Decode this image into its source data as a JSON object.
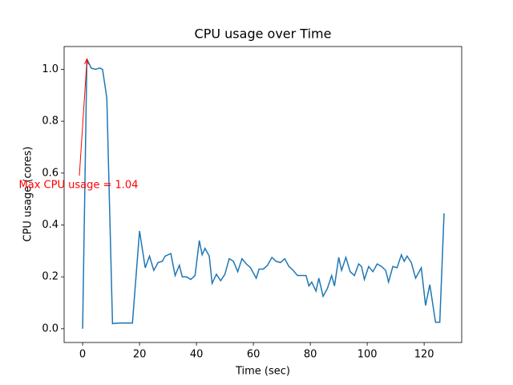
{
  "chart_data": {
    "type": "line",
    "title": "CPU usage over Time",
    "x_label": "Time (sec)",
    "y_label": "CPU usage (cores)",
    "annotation": "Max CPU usage = 1.04",
    "annotation_color": "#ff0000",
    "x": [
      0,
      1.5,
      3,
      4.5,
      6,
      7,
      8.5,
      10.5,
      13,
      17.5,
      20,
      22,
      23.5,
      25,
      26.5,
      28,
      29,
      31,
      32.5,
      34,
      35,
      36.5,
      38,
      39.5,
      41,
      42,
      43,
      44.5,
      45.5,
      47,
      48.5,
      50,
      51.5,
      53,
      54.5,
      56,
      57.5,
      59,
      61,
      62,
      63.5,
      65,
      66.5,
      68,
      69.5,
      71,
      72.5,
      74,
      75.5,
      77,
      78.5,
      79.5,
      80.5,
      82,
      83,
      84.5,
      86,
      87.5,
      88.5,
      90,
      91,
      92.5,
      94,
      95.5,
      97,
      98,
      99,
      100.5,
      102,
      103.5,
      105,
      106.5,
      107.5,
      109,
      110.5,
      112,
      113,
      114,
      115.5,
      117,
      119,
      120.5,
      122,
      124,
      125.5,
      127
    ],
    "series": [
      {
        "name": "CPU usage",
        "color": "#1f77b4",
        "values": [
          0.0,
          1.04,
          1.005,
          1.0,
          1.005,
          1.0,
          0.89,
          0.02,
          0.022,
          0.022,
          0.377,
          0.235,
          0.28,
          0.225,
          0.255,
          0.26,
          0.28,
          0.29,
          0.205,
          0.245,
          0.2,
          0.2,
          0.19,
          0.205,
          0.34,
          0.285,
          0.31,
          0.28,
          0.175,
          0.21,
          0.185,
          0.21,
          0.27,
          0.26,
          0.22,
          0.27,
          0.25,
          0.235,
          0.195,
          0.23,
          0.23,
          0.245,
          0.275,
          0.26,
          0.255,
          0.27,
          0.24,
          0.225,
          0.205,
          0.205,
          0.205,
          0.165,
          0.18,
          0.145,
          0.195,
          0.125,
          0.155,
          0.205,
          0.165,
          0.275,
          0.225,
          0.275,
          0.22,
          0.205,
          0.25,
          0.24,
          0.19,
          0.24,
          0.22,
          0.25,
          0.24,
          0.225,
          0.18,
          0.24,
          0.235,
          0.285,
          0.26,
          0.28,
          0.255,
          0.195,
          0.235,
          0.09,
          0.17,
          0.025,
          0.025,
          0.445
        ]
      }
    ],
    "xlim": [
      -6.5,
      133.2
    ],
    "ylim": [
      -0.053,
      1.088
    ],
    "xticks": [
      0,
      20,
      40,
      60,
      80,
      100,
      120
    ],
    "yticks": [
      {
        "value": 0,
        "label": "0.0"
      },
      0.2,
      0.4,
      0.6,
      0.8,
      {
        "value": 1,
        "label": "1.0"
      }
    ]
  }
}
